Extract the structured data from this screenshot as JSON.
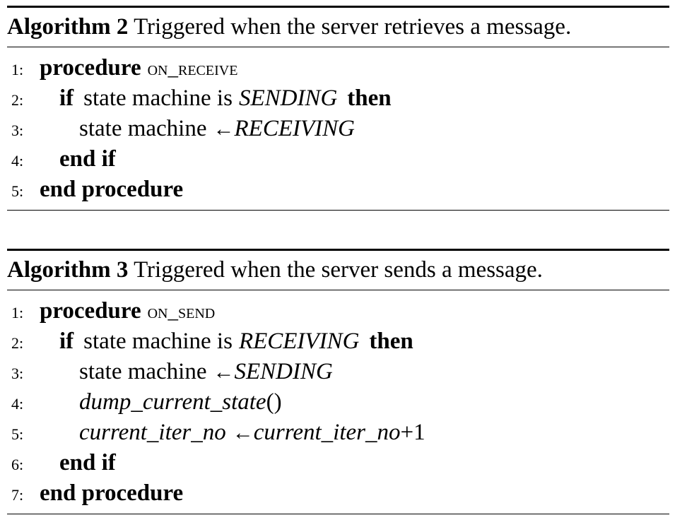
{
  "algorithm_2": {
    "label": "Algorithm 2",
    "caption": "Triggered when the server retrieves a message.",
    "lines": [
      {
        "num": "1:",
        "kw1": "procedure",
        "proc": "on_receive"
      },
      {
        "num": "2:",
        "kw1": "if",
        "text": "state machine is",
        "state": "SENDING",
        "kw2": "then"
      },
      {
        "num": "3:",
        "text": "state machine",
        "arrow": "←",
        "state": "RECEIVING"
      },
      {
        "num": "4:",
        "kw1": "end if"
      },
      {
        "num": "5:",
        "kw1": "end procedure"
      }
    ]
  },
  "algorithm_3": {
    "label": "Algorithm 3",
    "caption": "Triggered when the server sends a message.",
    "lines": [
      {
        "num": "1:",
        "kw1": "procedure",
        "proc": "on_send"
      },
      {
        "num": "2:",
        "kw1": "if",
        "text": "state machine is",
        "state": "RECEIVING",
        "kw2": "then"
      },
      {
        "num": "3:",
        "text": "state machine",
        "arrow": "←",
        "state": "SENDING"
      },
      {
        "num": "4:",
        "func": "dump_current_state",
        "parens": "()"
      },
      {
        "num": "5:",
        "var": "current_iter_no",
        "arrow": "←",
        "var2": "current_iter_no",
        "plus": "+1"
      },
      {
        "num": "6:",
        "kw1": "end if"
      },
      {
        "num": "7:",
        "kw1": "end procedure"
      }
    ]
  }
}
